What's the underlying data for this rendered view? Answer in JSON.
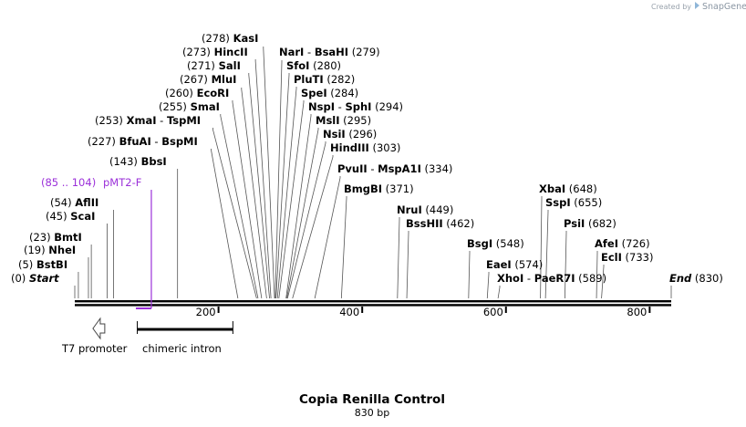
{
  "credit": {
    "prefix": "Created by",
    "brand": "SnapGene"
  },
  "map": {
    "title": "Copia Renilla Control",
    "length_label": "830 bp",
    "length": 830,
    "ruler_ticks": [
      {
        "value": 200,
        "label": "200"
      },
      {
        "value": 400,
        "label": "400"
      },
      {
        "value": 600,
        "label": "600"
      },
      {
        "value": 800,
        "label": "800"
      }
    ],
    "sites": [
      {
        "name": "Start",
        "pos": "(0)",
        "bp": 0,
        "italic": true
      },
      {
        "name": "BstBI",
        "pos": "(5)",
        "bp": 5
      },
      {
        "name": "NheI",
        "pos": "(19)",
        "bp": 19
      },
      {
        "name": "BmtI",
        "pos": "(23)",
        "bp": 23
      },
      {
        "name": "ScaI",
        "pos": "(45)",
        "bp": 45
      },
      {
        "name": "AflII",
        "pos": "(54)",
        "bp": 54
      },
      {
        "name": "BbsI",
        "pos": "(143)",
        "bp": 143
      },
      {
        "name": "BfuAI",
        "name2": "BspMI",
        "pos": "(227)",
        "bp": 227
      },
      {
        "name": "XmaI",
        "name2": "TspMI",
        "pos": "(253)",
        "bp": 253
      },
      {
        "name": "SmaI",
        "pos": "(255)",
        "bp": 255
      },
      {
        "name": "EcoRI",
        "pos": "(260)",
        "bp": 260
      },
      {
        "name": "MluI",
        "pos": "(267)",
        "bp": 267
      },
      {
        "name": "SalI",
        "pos": "(271)",
        "bp": 271
      },
      {
        "name": "HincII",
        "pos": "(273)",
        "bp": 273
      },
      {
        "name": "KasI",
        "pos": "(278)",
        "bp": 278
      },
      {
        "name": "NarI",
        "name2": "BsaHI",
        "pos": "(279)",
        "bp": 279
      },
      {
        "name": "SfoI",
        "pos": "(280)",
        "bp": 280
      },
      {
        "name": "PluTI",
        "pos": "(282)",
        "bp": 282
      },
      {
        "name": "SpeI",
        "pos": "(284)",
        "bp": 284
      },
      {
        "name": "NspI",
        "name2": "SphI",
        "pos": "(294)",
        "bp": 294
      },
      {
        "name": "MslI",
        "pos": "(295)",
        "bp": 295
      },
      {
        "name": "NsiI",
        "pos": "(296)",
        "bp": 296
      },
      {
        "name": "HindIII",
        "pos": "(303)",
        "bp": 303
      },
      {
        "name": "PvuII",
        "name2": "MspA1I",
        "pos": "(334)",
        "bp": 334
      },
      {
        "name": "BmgBI",
        "pos": "(371)",
        "bp": 371
      },
      {
        "name": "NruI",
        "pos": "(449)",
        "bp": 449
      },
      {
        "name": "BssHII",
        "pos": "(462)",
        "bp": 462
      },
      {
        "name": "BsgI",
        "pos": "(548)",
        "bp": 548
      },
      {
        "name": "EaeI",
        "pos": "(574)",
        "bp": 574
      },
      {
        "name": "XhoI",
        "name2": "PaeR7I",
        "pos": "(589)",
        "bp": 589
      },
      {
        "name": "XbaI",
        "pos": "(648)",
        "bp": 648
      },
      {
        "name": "SspI",
        "pos": "(655)",
        "bp": 655
      },
      {
        "name": "PsiI",
        "pos": "(682)",
        "bp": 682
      },
      {
        "name": "AfeI",
        "pos": "(726)",
        "bp": 726
      },
      {
        "name": "EclI",
        "pos": "(733)",
        "bp": 733
      },
      {
        "name": "End",
        "pos": "(830)",
        "bp": 830,
        "italic": true
      }
    ],
    "primer": {
      "name": "pMT2-F",
      "range": "(85 .. 104)",
      "start": 85,
      "end": 104,
      "color": "#9b30d9"
    },
    "features": [
      {
        "name": "T7 promoter",
        "type": "promoter-arrow",
        "start": 24,
        "end": 43
      },
      {
        "name": "chimeric intron",
        "type": "bar",
        "start": 87,
        "end": 220
      }
    ]
  }
}
